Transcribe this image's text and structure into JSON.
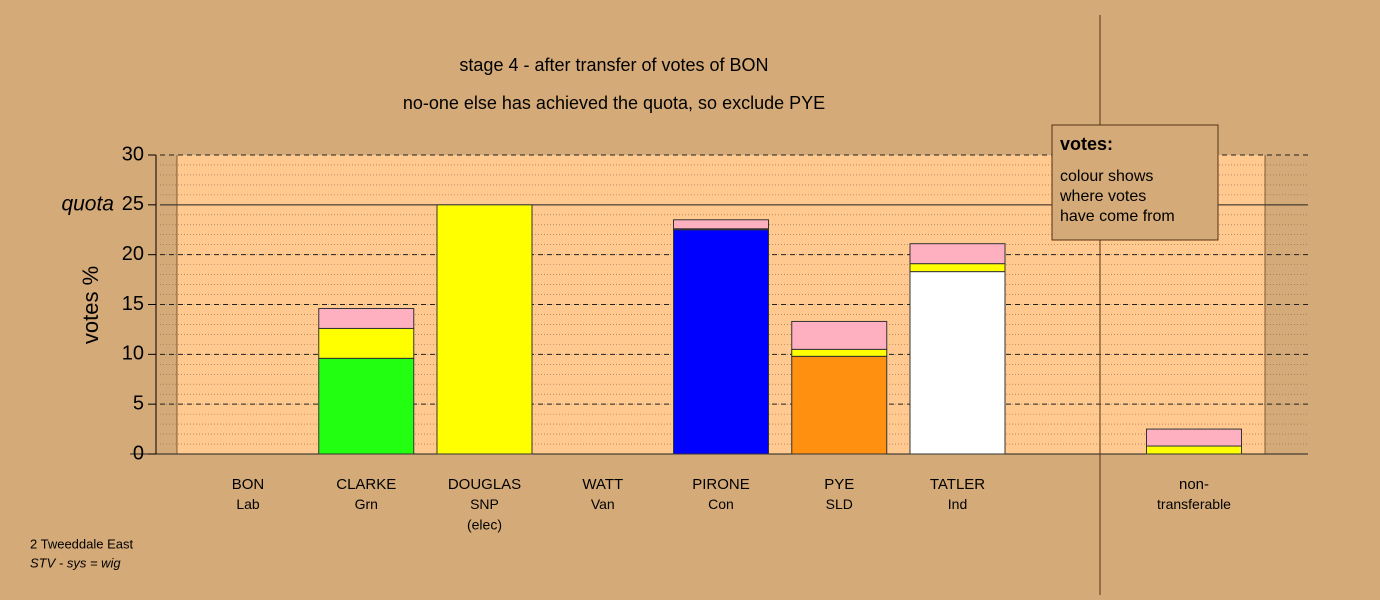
{
  "chart_data": {
    "type": "stacked-bar",
    "title": "stage 4 - after transfer of votes of BON",
    "subtitle": "no-one else has achieved the quota, so exclude PYE",
    "y_label": "votes %",
    "quota_label": "quota",
    "quota": 25,
    "categories": [
      [
        "BON",
        "Lab"
      ],
      [
        "CLARKE",
        "Grn"
      ],
      [
        "DOUGLAS",
        "SNP",
        "(elec)"
      ],
      [
        "WATT",
        "Van"
      ],
      [
        "PIRONE",
        "Con"
      ],
      [
        "PYE",
        "SLD"
      ],
      [
        "TATLER",
        "Ind"
      ],
      null,
      [
        "non-",
        "transferable"
      ]
    ],
    "series": [
      {
        "colors": [
          "#cc0000",
          "#22ff11",
          "#ffff00",
          "#888888",
          "#0000ff",
          "#ff9010",
          "#ffffff",
          null,
          "#ffff00"
        ],
        "values": [
          0,
          9.6,
          25,
          0,
          22.5,
          9.8,
          18.3,
          null,
          0
        ]
      },
      {
        "color": "#ffff00",
        "values": [
          0,
          3.0,
          0,
          0,
          0.1,
          0.7,
          0.8,
          null,
          0.8
        ]
      },
      {
        "color": "#ffb0c0",
        "values": [
          0,
          2.0,
          0,
          0,
          0.9,
          2.8,
          2.0,
          null,
          1.7
        ]
      }
    ],
    "ylim": [
      0,
      30
    ],
    "yticks": [
      0,
      5,
      10,
      15,
      20,
      25,
      30
    ],
    "grid": true,
    "legend": {
      "title": "votes:",
      "lines": [
        "colour shows",
        "where votes",
        "have come from"
      ]
    },
    "footer": [
      "2 Tweeddale East",
      "STV - sys = wig"
    ]
  }
}
